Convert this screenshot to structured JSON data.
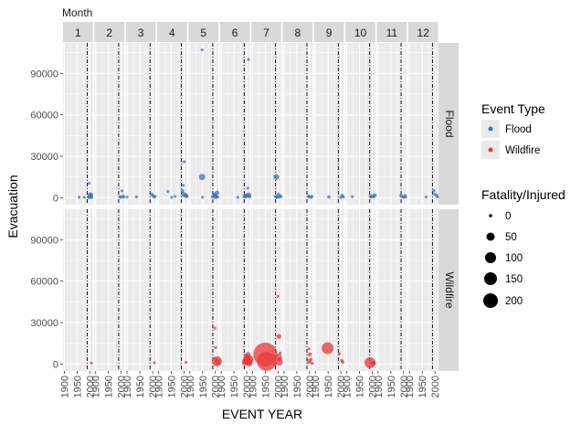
{
  "chart_data": {
    "type": "scatter",
    "facet_top_label": "Month",
    "months": [
      "1",
      "2",
      "3",
      "4",
      "5",
      "6",
      "7",
      "8",
      "9",
      "10",
      "11",
      "12"
    ],
    "rows": [
      "Flood",
      "Wildfire"
    ],
    "xlabel": "EVENT YEAR",
    "ylabel": "Evacuation",
    "xlim": [
      1895,
      2012
    ],
    "xticks": [
      1900,
      1950,
      2000
    ],
    "xtick_labels": [
      "1900",
      "1950",
      "2000"
    ],
    "ylim": [
      -5000,
      112000
    ],
    "yticks": [
      0,
      30000,
      60000,
      90000
    ],
    "ytick_labels": [
      "0",
      "30000",
      "60000",
      "90000"
    ],
    "vline_year": 1990,
    "grid": true,
    "colors": {
      "Flood": "#4472c4",
      "Wildfire": "#e8393b",
      "panel_bg": "#ebebeb",
      "strip_bg": "#d9d9d9",
      "grid": "#ffffff"
    },
    "legend": {
      "color_title": "Event Type",
      "color_items": [
        "Flood",
        "Wildfire"
      ],
      "size_title": "Fatality/Injured",
      "size_items": [
        0,
        50,
        100,
        150,
        200
      ]
    },
    "points": [
      {
        "month": 1,
        "type": "Flood",
        "year": 1996,
        "y": 200,
        "s": 2
      },
      {
        "month": 1,
        "type": "Flood",
        "year": 1999,
        "y": 600,
        "s": 4
      },
      {
        "month": 1,
        "type": "Flood",
        "year": 2002,
        "y": 1800,
        "s": 8
      },
      {
        "month": 1,
        "type": "Flood",
        "year": 2004,
        "y": 700,
        "s": 3
      },
      {
        "month": 1,
        "type": "Flood",
        "year": 2007,
        "y": 300,
        "s": 2
      },
      {
        "month": 1,
        "type": "Flood",
        "year": 1997,
        "y": 10500,
        "s": 2
      },
      {
        "month": 1,
        "type": "Flood",
        "year": 2005,
        "y": 2500,
        "s": 3
      },
      {
        "month": 1,
        "type": "Flood",
        "year": 1958,
        "y": 400,
        "s": 2
      },
      {
        "month": 1,
        "type": "Flood",
        "year": 1978,
        "y": 300,
        "s": 2
      },
      {
        "month": 1,
        "type": "Wildfire",
        "year": 2006,
        "y": 800,
        "s": 2
      },
      {
        "month": 2,
        "type": "Flood",
        "year": 1995,
        "y": 800,
        "s": 2
      },
      {
        "month": 2,
        "type": "Flood",
        "year": 2003,
        "y": 5000,
        "s": 2
      },
      {
        "month": 2,
        "type": "Flood",
        "year": 2006,
        "y": 1000,
        "s": 3
      },
      {
        "month": 2,
        "type": "Flood",
        "year": 1998,
        "y": 300,
        "s": 2
      },
      {
        "month": 2,
        "type": "Flood",
        "year": 2010,
        "y": 500,
        "s": 2
      },
      {
        "month": 3,
        "type": "Flood",
        "year": 1900,
        "y": 500,
        "s": 2
      },
      {
        "month": 3,
        "type": "Flood",
        "year": 1937,
        "y": 600,
        "s": 2
      },
      {
        "month": 3,
        "type": "Flood",
        "year": 1996,
        "y": 2500,
        "s": 3
      },
      {
        "month": 3,
        "type": "Flood",
        "year": 2001,
        "y": 1500,
        "s": 2
      },
      {
        "month": 3,
        "type": "Flood",
        "year": 2006,
        "y": 800,
        "s": 3
      },
      {
        "month": 3,
        "type": "Flood",
        "year": 2010,
        "y": 1000,
        "s": 2
      },
      {
        "month": 3,
        "type": "Wildfire",
        "year": 2007,
        "y": 1000,
        "s": 2
      },
      {
        "month": 4,
        "type": "Flood",
        "year": 1937,
        "y": 4500,
        "s": 2
      },
      {
        "month": 4,
        "type": "Flood",
        "year": 1952,
        "y": 300,
        "s": 2
      },
      {
        "month": 4,
        "type": "Flood",
        "year": 1965,
        "y": 1000,
        "s": 2
      },
      {
        "month": 4,
        "type": "Flood",
        "year": 1997,
        "y": 9000,
        "s": 2
      },
      {
        "month": 4,
        "type": "Flood",
        "year": 2001,
        "y": 26000,
        "s": 2
      },
      {
        "month": 4,
        "type": "Flood",
        "year": 1994,
        "y": 5000,
        "s": 3
      },
      {
        "month": 4,
        "type": "Flood",
        "year": 1998,
        "y": 2500,
        "s": 6
      },
      {
        "month": 4,
        "type": "Flood",
        "year": 2005,
        "y": 1500,
        "s": 4
      },
      {
        "month": 4,
        "type": "Flood",
        "year": 2008,
        "y": 2000,
        "s": 4
      },
      {
        "month": 4,
        "type": "Flood",
        "year": 2011,
        "y": 1000,
        "s": 3
      },
      {
        "month": 4,
        "type": "Wildfire",
        "year": 2008,
        "y": 1200,
        "s": 2
      },
      {
        "month": 5,
        "type": "Flood",
        "year": 1948,
        "y": 107000,
        "s": 2
      },
      {
        "month": 5,
        "type": "Flood",
        "year": 1948,
        "y": 15000,
        "s": 10
      },
      {
        "month": 5,
        "type": "Flood",
        "year": 1950,
        "y": 400,
        "s": 2
      },
      {
        "month": 5,
        "type": "Flood",
        "year": 1990,
        "y": 800,
        "s": 3
      },
      {
        "month": 5,
        "type": "Flood",
        "year": 1994,
        "y": 1500,
        "s": 2
      },
      {
        "month": 5,
        "type": "Flood",
        "year": 1997,
        "y": 2500,
        "s": 4
      },
      {
        "month": 5,
        "type": "Flood",
        "year": 2000,
        "y": 1000,
        "s": 6
      },
      {
        "month": 5,
        "type": "Flood",
        "year": 2004,
        "y": 700,
        "s": 3
      },
      {
        "month": 5,
        "type": "Flood",
        "year": 2007,
        "y": 3500,
        "s": 5
      },
      {
        "month": 5,
        "type": "Flood",
        "year": 2010,
        "y": 500,
        "s": 2
      },
      {
        "month": 5,
        "type": "Wildfire",
        "year": 1998,
        "y": 26000,
        "s": 2
      },
      {
        "month": 5,
        "type": "Wildfire",
        "year": 2001,
        "y": 12000,
        "s": 2
      },
      {
        "month": 5,
        "type": "Wildfire",
        "year": 2002,
        "y": 3000,
        "s": 3
      },
      {
        "month": 5,
        "type": "Wildfire",
        "year": 2006,
        "y": 2000,
        "s": 25
      },
      {
        "month": 5,
        "type": "Wildfire",
        "year": 2009,
        "y": 1500,
        "s": 8
      },
      {
        "month": 6,
        "type": "Flood",
        "year": 1965,
        "y": 300,
        "s": 2
      },
      {
        "month": 6,
        "type": "Flood",
        "year": 1990,
        "y": 1000,
        "s": 3
      },
      {
        "month": 6,
        "type": "Flood",
        "year": 1994,
        "y": 1500,
        "s": 3
      },
      {
        "month": 6,
        "type": "Flood",
        "year": 1997,
        "y": 500,
        "s": 2
      },
      {
        "month": 6,
        "type": "Flood",
        "year": 2001,
        "y": 2000,
        "s": 4
      },
      {
        "month": 6,
        "type": "Flood",
        "year": 2004,
        "y": 7000,
        "s": 2
      },
      {
        "month": 6,
        "type": "Flood",
        "year": 2007,
        "y": 100000,
        "s": 2
      },
      {
        "month": 6,
        "type": "Flood",
        "year": 2008,
        "y": 2000,
        "s": 6
      },
      {
        "month": 6,
        "type": "Flood",
        "year": 2011,
        "y": 800,
        "s": 3
      },
      {
        "month": 6,
        "type": "Wildfire",
        "year": 1992,
        "y": 1200,
        "s": 8
      },
      {
        "month": 6,
        "type": "Wildfire",
        "year": 1997,
        "y": 6000,
        "s": 4
      },
      {
        "month": 6,
        "type": "Wildfire",
        "year": 2001,
        "y": 2500,
        "s": 20
      },
      {
        "month": 6,
        "type": "Wildfire",
        "year": 2003,
        "y": 4500,
        "s": 12
      },
      {
        "month": 6,
        "type": "Wildfire",
        "year": 2005,
        "y": 7000,
        "s": 6
      },
      {
        "month": 6,
        "type": "Wildfire",
        "year": 2007,
        "y": 3000,
        "s": 25
      },
      {
        "month": 6,
        "type": "Wildfire",
        "year": 2009,
        "y": 500,
        "s": 10
      },
      {
        "month": 6,
        "type": "Wildfire",
        "year": 2011,
        "y": 2000,
        "s": 8
      },
      {
        "month": 7,
        "type": "Flood",
        "year": 1990,
        "y": 800,
        "s": 3
      },
      {
        "month": 7,
        "type": "Flood",
        "year": 1993,
        "y": 15000,
        "s": 8
      },
      {
        "month": 7,
        "type": "Flood",
        "year": 1995,
        "y": 300,
        "s": 2
      },
      {
        "month": 7,
        "type": "Flood",
        "year": 1997,
        "y": 600,
        "s": 3
      },
      {
        "month": 7,
        "type": "Flood",
        "year": 2001,
        "y": 2500,
        "s": 2
      },
      {
        "month": 7,
        "type": "Flood",
        "year": 2003,
        "y": 500,
        "s": 2
      },
      {
        "month": 7,
        "type": "Flood",
        "year": 2007,
        "y": 1500,
        "s": 3
      },
      {
        "month": 7,
        "type": "Flood",
        "year": 2011,
        "y": 800,
        "s": 2
      },
      {
        "month": 7,
        "type": "Wildfire",
        "year": 1950,
        "y": 7000,
        "s": 140
      },
      {
        "month": 7,
        "type": "Wildfire",
        "year": 1955,
        "y": 2000,
        "s": 90
      },
      {
        "month": 7,
        "type": "Wildfire",
        "year": 1999,
        "y": 49000,
        "s": 2
      },
      {
        "month": 7,
        "type": "Wildfire",
        "year": 2001,
        "y": 5000,
        "s": 12
      },
      {
        "month": 7,
        "type": "Wildfire",
        "year": 2003,
        "y": 20000,
        "s": 6
      },
      {
        "month": 7,
        "type": "Wildfire",
        "year": 2005,
        "y": 1500,
        "s": 12
      },
      {
        "month": 7,
        "type": "Wildfire",
        "year": 2007,
        "y": 3500,
        "s": 4
      },
      {
        "month": 7,
        "type": "Wildfire",
        "year": 2008,
        "y": 8000,
        "s": 2
      },
      {
        "month": 7,
        "type": "Wildfire",
        "year": 1990,
        "y": 200,
        "s": 3
      },
      {
        "month": 8,
        "type": "Flood",
        "year": 1997,
        "y": 1000,
        "s": 3
      },
      {
        "month": 8,
        "type": "Flood",
        "year": 2001,
        "y": 800,
        "s": 2
      },
      {
        "month": 8,
        "type": "Flood",
        "year": 2006,
        "y": 300,
        "s": 2
      },
      {
        "month": 8,
        "type": "Flood",
        "year": 2010,
        "y": 1000,
        "s": 2
      },
      {
        "month": 8,
        "type": "Wildfire",
        "year": 1998,
        "y": 11000,
        "s": 2
      },
      {
        "month": 8,
        "type": "Wildfire",
        "year": 2001,
        "y": 7000,
        "s": 4
      },
      {
        "month": 8,
        "type": "Wildfire",
        "year": 1999,
        "y": 2000,
        "s": 6
      },
      {
        "month": 8,
        "type": "Wildfire",
        "year": 2006,
        "y": 3500,
        "s": 2
      },
      {
        "month": 8,
        "type": "Wildfire",
        "year": 2011,
        "y": 500,
        "s": 2
      },
      {
        "month": 9,
        "type": "Flood",
        "year": 1953,
        "y": 600,
        "s": 3
      },
      {
        "month": 9,
        "type": "Flood",
        "year": 2000,
        "y": 300,
        "s": 2
      },
      {
        "month": 9,
        "type": "Flood",
        "year": 2005,
        "y": 1500,
        "s": 3
      },
      {
        "month": 9,
        "type": "Flood",
        "year": 2010,
        "y": 600,
        "s": 2
      },
      {
        "month": 9,
        "type": "Wildfire",
        "year": 1948,
        "y": 11500,
        "s": 35
      },
      {
        "month": 9,
        "type": "Wildfire",
        "year": 1994,
        "y": 7500,
        "s": 2
      },
      {
        "month": 9,
        "type": "Wildfire",
        "year": 2003,
        "y": 2500,
        "s": 2
      },
      {
        "month": 9,
        "type": "Wildfire",
        "year": 2007,
        "y": 1500,
        "s": 3
      },
      {
        "month": 10,
        "type": "Flood",
        "year": 1922,
        "y": 800,
        "s": 2
      },
      {
        "month": 10,
        "type": "Flood",
        "year": 1993,
        "y": 1000,
        "s": 3
      },
      {
        "month": 10,
        "type": "Flood",
        "year": 1996,
        "y": 500,
        "s": 2
      },
      {
        "month": 10,
        "type": "Flood",
        "year": 2002,
        "y": 1200,
        "s": 3
      },
      {
        "month": 10,
        "type": "Flood",
        "year": 2007,
        "y": 700,
        "s": 2
      },
      {
        "month": 10,
        "type": "Flood",
        "year": 2011,
        "y": 2000,
        "s": 3
      },
      {
        "month": 10,
        "type": "Wildfire",
        "year": 1991,
        "y": 1000,
        "s": 30
      },
      {
        "month": 10,
        "type": "Wildfire",
        "year": 2003,
        "y": 500,
        "s": 6
      },
      {
        "month": 10,
        "type": "Wildfire",
        "year": 2007,
        "y": 1500,
        "s": 2
      },
      {
        "month": 10,
        "type": "Wildfire",
        "year": 2008,
        "y": 800,
        "s": 3
      },
      {
        "month": 11,
        "type": "Flood",
        "year": 1990,
        "y": 1500,
        "s": 3
      },
      {
        "month": 11,
        "type": "Flood",
        "year": 1995,
        "y": 700,
        "s": 2
      },
      {
        "month": 11,
        "type": "Flood",
        "year": 2001,
        "y": 300,
        "s": 2
      },
      {
        "month": 11,
        "type": "Flood",
        "year": 2006,
        "y": 1500,
        "s": 3
      },
      {
        "month": 11,
        "type": "Flood",
        "year": 2008,
        "y": 500,
        "s": 2
      },
      {
        "month": 12,
        "type": "Flood",
        "year": 1965,
        "y": 500,
        "s": 2
      },
      {
        "month": 12,
        "type": "Flood",
        "year": 1995,
        "y": 5000,
        "s": 3
      },
      {
        "month": 12,
        "type": "Flood",
        "year": 1999,
        "y": 2500,
        "s": 2
      },
      {
        "month": 12,
        "type": "Flood",
        "year": 2006,
        "y": 1500,
        "s": 3
      },
      {
        "month": 12,
        "type": "Flood",
        "year": 2010,
        "y": 500,
        "s": 2
      }
    ]
  }
}
